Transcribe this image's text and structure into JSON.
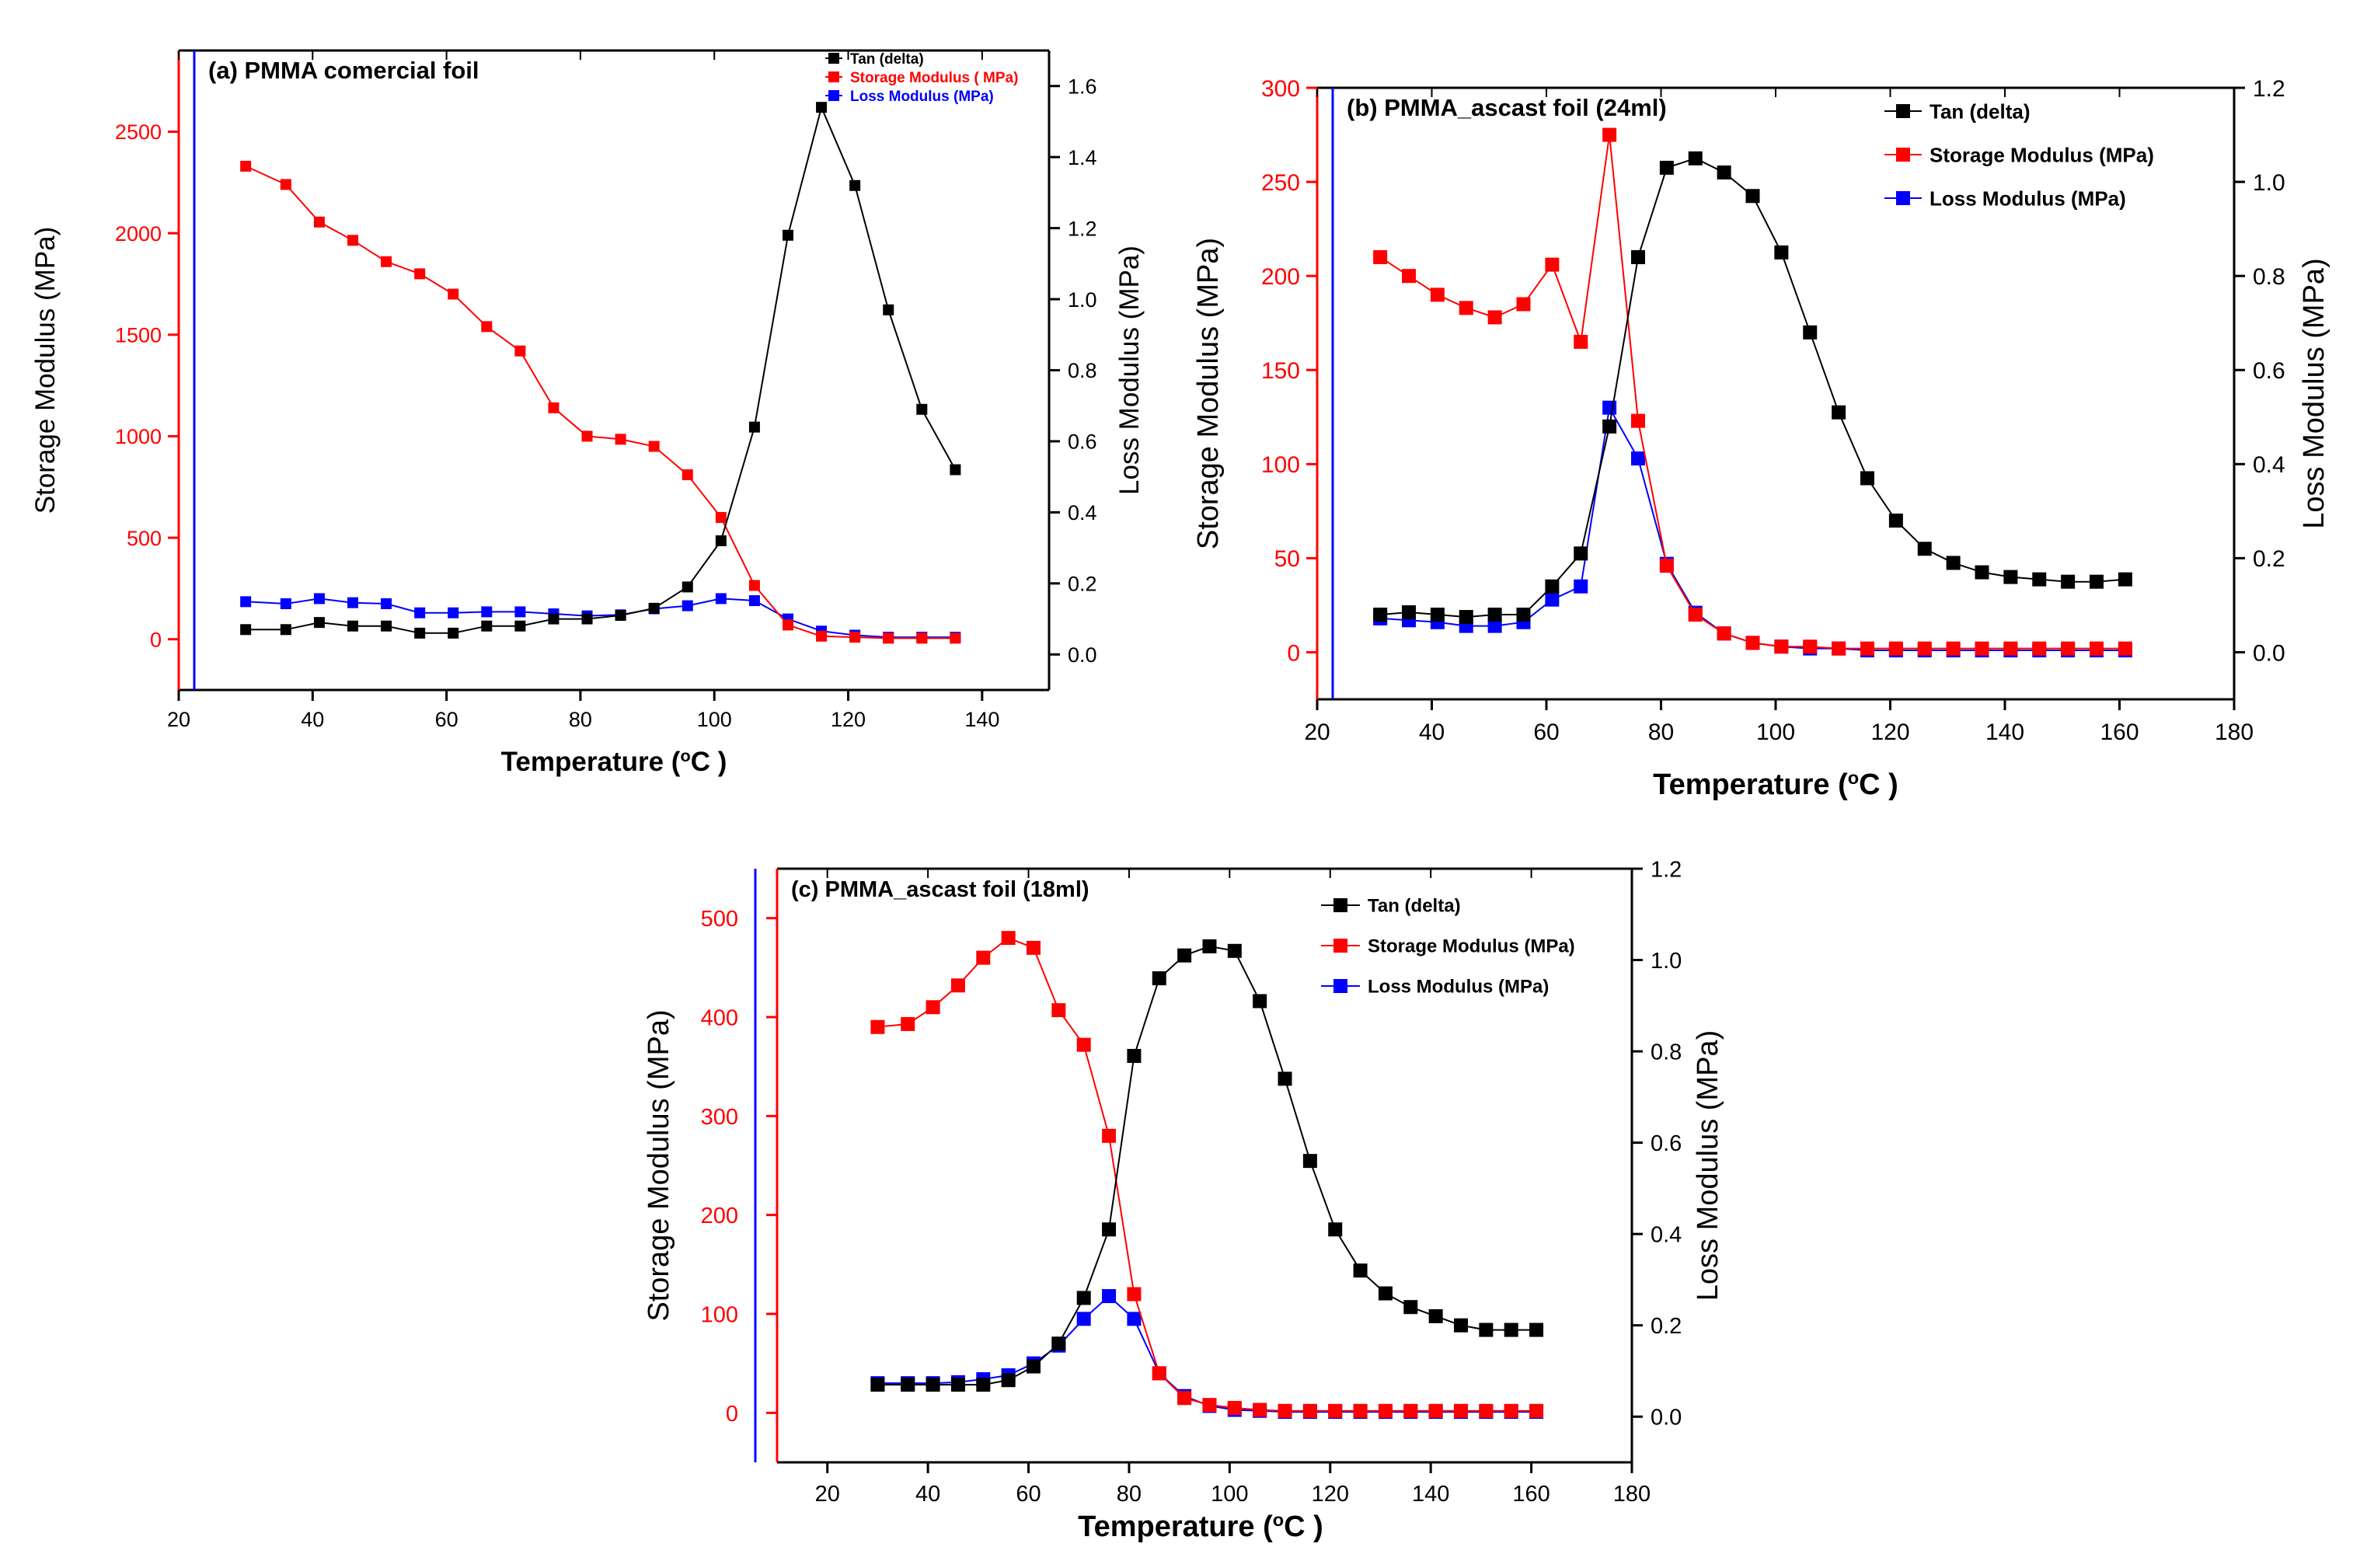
{
  "chart_data": [
    {
      "type": "line",
      "title": "(a) PMMA comercial foil",
      "xlabel": "Temperature (",
      "xlabel_sup": "o",
      "xlabel_tail": "C )",
      "ylabel_left": "Storage Modulus (MPa)",
      "ylabel_right": "Loss Modulus (MPa)",
      "xlim": [
        20,
        150
      ],
      "ylim_left": [
        -250,
        2900
      ],
      "ylim_right": [
        -0.1,
        1.7
      ],
      "xticks": [
        20,
        40,
        60,
        80,
        100,
        120,
        140
      ],
      "yticks_left": [
        0,
        500,
        1000,
        1500,
        2000,
        2500
      ],
      "yticks_right": [
        0.0,
        0.2,
        0.4,
        0.6,
        0.8,
        1.0,
        1.2,
        1.4,
        1.6
      ],
      "legend": [
        "Tan (delta)",
        "Storage Modulus ( MPa)",
        "Loss Modulus (MPa)"
      ],
      "x": [
        30,
        36,
        41,
        46,
        51,
        56,
        61,
        66,
        71,
        76,
        81,
        86,
        91,
        96,
        101,
        106,
        111,
        116,
        121,
        126,
        131,
        136
      ],
      "series": [
        {
          "name": "Tan (delta)",
          "axis": "right",
          "color": "#000000",
          "values": [
            0.07,
            0.07,
            0.09,
            0.08,
            0.08,
            0.06,
            0.06,
            0.08,
            0.08,
            0.1,
            0.1,
            0.11,
            0.13,
            0.19,
            0.32,
            0.64,
            1.18,
            1.54,
            1.32,
            0.97,
            0.69,
            0.52
          ]
        },
        {
          "name": "Storage Modulus ( MPa)",
          "axis": "left",
          "color": "#ff0000",
          "values": [
            2330,
            2240,
            2055,
            1965,
            1860,
            1800,
            1700,
            1540,
            1420,
            1140,
            1000,
            985,
            950,
            810,
            600,
            265,
            70,
            15,
            10,
            5,
            5,
            5
          ]
        },
        {
          "name": "Loss Modulus (MPa)",
          "axis": "left",
          "color": "#0000ff",
          "values": [
            185,
            175,
            200,
            180,
            175,
            130,
            130,
            135,
            135,
            125,
            115,
            120,
            150,
            165,
            200,
            190,
            100,
            40,
            20,
            10,
            10,
            10
          ]
        }
      ]
    },
    {
      "type": "line",
      "title": "(b) PMMA_ascast foil (24ml)",
      "xlabel": "Temperature (",
      "xlabel_sup": "o",
      "xlabel_tail": "C )",
      "ylabel_left": "Storage Modulus (MPa)",
      "ylabel_right": "Loss Modulus (MPa)",
      "xlim": [
        20,
        180
      ],
      "ylim_left": [
        -25,
        300
      ],
      "ylim_right": [
        -0.1,
        1.2
      ],
      "xticks": [
        20,
        40,
        60,
        80,
        100,
        120,
        140,
        160,
        180
      ],
      "yticks_left": [
        0,
        50,
        100,
        150,
        200,
        250,
        300
      ],
      "yticks_right": [
        0.0,
        0.2,
        0.4,
        0.6,
        0.8,
        1.0,
        1.2
      ],
      "legend": [
        "Tan (delta)",
        "Storage Modulus (MPa)",
        "Loss Modulus (MPa)"
      ],
      "x": [
        31,
        36,
        41,
        46,
        51,
        56,
        61,
        66,
        71,
        76,
        81,
        86,
        91,
        96,
        101,
        106,
        111,
        116,
        121,
        126,
        131,
        136,
        141,
        146,
        151,
        156,
        161
      ],
      "series": [
        {
          "name": "Tan (delta)",
          "axis": "right",
          "color": "#000000",
          "values": [
            0.08,
            0.085,
            0.08,
            0.075,
            0.08,
            0.08,
            0.14,
            0.21,
            0.48,
            0.84,
            1.03,
            1.05,
            1.02,
            0.97,
            0.85,
            0.68,
            0.51,
            0.37,
            0.28,
            0.22,
            0.19,
            0.17,
            0.16,
            0.155,
            0.15,
            0.15,
            0.155
          ]
        },
        {
          "name": "Storage Modulus (MPa)",
          "axis": "left",
          "color": "#ff0000",
          "values": [
            210,
            200,
            190,
            183,
            178,
            185,
            206,
            165,
            275,
            123,
            46,
            20,
            10,
            5,
            3,
            3,
            2,
            2,
            2,
            2,
            2,
            2,
            2,
            2,
            2,
            2,
            2
          ]
        },
        {
          "name": "Loss Modulus (MPa)",
          "axis": "left",
          "color": "#0000ff",
          "values": [
            18,
            17,
            16,
            14,
            14,
            16,
            28,
            35,
            130,
            103,
            47,
            21,
            10,
            5,
            3,
            2,
            2,
            1,
            1,
            1,
            1,
            1,
            1,
            1,
            1,
            1,
            1
          ]
        }
      ]
    },
    {
      "type": "line",
      "title": "(c) PMMA_ascast foil (18ml)",
      "xlabel": "Temperature (",
      "xlabel_sup": "o",
      "xlabel_tail": "C )",
      "ylabel_left": "Storage Modulus (MPa)",
      "ylabel_right": "Loss Modulus (MPa)",
      "xlim": [
        10,
        180
      ],
      "ylim_left": [
        -50,
        550
      ],
      "ylim_right": [
        -0.1,
        1.2
      ],
      "xticks": [
        20,
        40,
        60,
        80,
        100,
        120,
        140,
        160,
        180
      ],
      "yticks_left": [
        0,
        100,
        200,
        300,
        400,
        500
      ],
      "yticks_right": [
        0.0,
        0.2,
        0.4,
        0.6,
        0.8,
        1.0,
        1.2
      ],
      "legend": [
        "Tan (delta)",
        "Storage Modulus (MPa)",
        "Loss Modulus (MPa)"
      ],
      "x": [
        30,
        36,
        41,
        46,
        51,
        56,
        61,
        66,
        71,
        76,
        81,
        86,
        91,
        96,
        101,
        106,
        111,
        116,
        121,
        126,
        131,
        136,
        141,
        146,
        151,
        156,
        161
      ],
      "series": [
        {
          "name": "Tan (delta)",
          "axis": "right",
          "color": "#000000",
          "values": [
            0.07,
            0.07,
            0.07,
            0.07,
            0.07,
            0.08,
            0.11,
            0.16,
            0.26,
            0.41,
            0.79,
            0.96,
            1.01,
            1.03,
            1.02,
            0.91,
            0.74,
            0.56,
            0.41,
            0.32,
            0.27,
            0.24,
            0.22,
            0.2,
            0.19,
            0.19,
            0.19
          ]
        },
        {
          "name": "Storage Modulus (MPa)",
          "axis": "left",
          "color": "#ff0000",
          "values": [
            390,
            393,
            410,
            432,
            460,
            480,
            470,
            407,
            372,
            280,
            120,
            40,
            15,
            8,
            5,
            3,
            2,
            2,
            2,
            2,
            2,
            2,
            2,
            2,
            2,
            2,
            2
          ]
        },
        {
          "name": "Loss Modulus (MPa)",
          "axis": "left",
          "color": "#0000ff",
          "values": [
            30,
            30,
            30,
            31,
            34,
            38,
            50,
            68,
            95,
            118,
            95,
            40,
            17,
            7,
            3,
            2,
            1,
            1,
            1,
            1,
            1,
            1,
            1,
            1,
            1,
            1,
            1
          ]
        }
      ]
    }
  ]
}
